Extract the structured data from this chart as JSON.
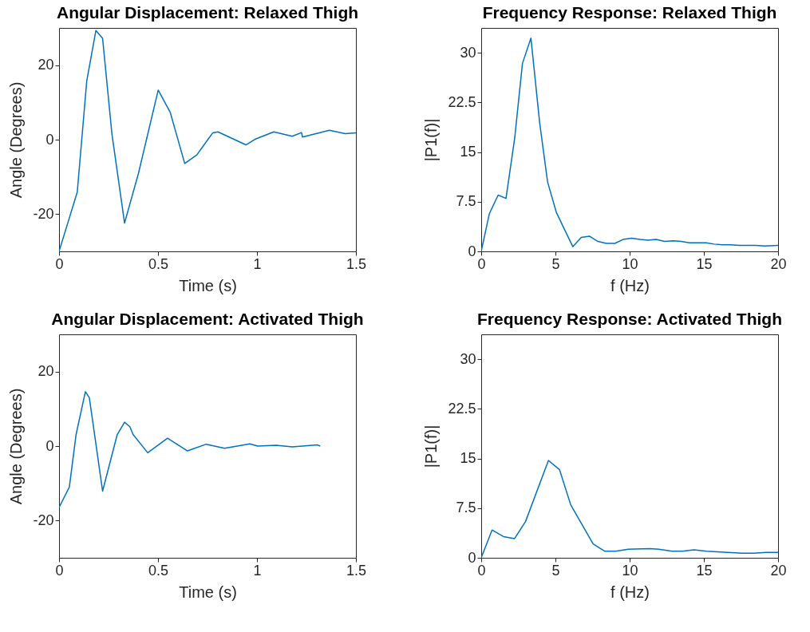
{
  "chart_data": [
    {
      "type": "line",
      "title": "Angular Displacement: Relaxed Thigh",
      "xlabel": "Time (s)",
      "ylabel": "Angle (Degrees)",
      "xlim": [
        0,
        1.5
      ],
      "xticks": [
        0,
        0.5,
        1,
        1.5
      ],
      "ylim": [
        -30,
        30
      ],
      "yticks": [
        -20,
        0,
        20
      ],
      "grid": false,
      "series": [
        {
          "color": "#0072bd",
          "x": [
            0,
            0.092,
            0.14,
            0.186,
            0.22,
            0.267,
            0.331,
            0.401,
            0.501,
            0.562,
            0.635,
            0.696,
            0.776,
            0.803,
            0.944,
            0.99,
            1.085,
            1.178,
            1.225,
            1.23,
            1.366,
            1.446,
            1.5
          ],
          "values": [
            -30,
            -14.1,
            15.8,
            29.3,
            27.2,
            1.6,
            -22.4,
            -9.1,
            13.3,
            7.3,
            -6.4,
            -4.1,
            1.8,
            2.1,
            -1.4,
            0.1,
            2.1,
            0.9,
            1.9,
            0.7,
            2.5,
            1.6,
            1.8
          ]
        }
      ]
    },
    {
      "type": "line",
      "title": "Frequency Response: Relaxed Thigh",
      "xlabel": "f (Hz)",
      "ylabel": "|P1(f)|",
      "xlim": [
        0,
        20
      ],
      "xticks": [
        0,
        5,
        10,
        15,
        20
      ],
      "ylim": [
        0,
        33.75
      ],
      "yticks": [
        0,
        7.5,
        15,
        22.5,
        30
      ],
      "grid": false,
      "series": [
        {
          "color": "#0072bd",
          "x": [
            0,
            0.55,
            1.14,
            1.67,
            2.25,
            2.78,
            3.35,
            3.94,
            4.47,
            5.06,
            6.17,
            6.74,
            7.29,
            7.86,
            8.43,
            9.0,
            9.56,
            10.12,
            10.7,
            11.24,
            11.77,
            12.36,
            12.93,
            13.46,
            14.03,
            15.15,
            15.69,
            16.26,
            16.81,
            17.39,
            18.5,
            19.1,
            20
          ],
          "values": [
            0,
            5.7,
            8.5,
            8.0,
            17.0,
            28.4,
            32.2,
            19.4,
            10.5,
            5.9,
            0.7,
            2.1,
            2.3,
            1.5,
            1.2,
            1.2,
            1.8,
            2.0,
            1.8,
            1.7,
            1.8,
            1.5,
            1.6,
            1.5,
            1.3,
            1.3,
            1.1,
            1.0,
            1.0,
            0.9,
            0.9,
            0.8,
            0.9
          ]
        }
      ]
    },
    {
      "type": "line",
      "title": "Angular Displacement: Activated Thigh",
      "xlabel": "Time (s)",
      "ylabel": "Angle (Degrees)",
      "xlim": [
        0,
        1.5
      ],
      "xticks": [
        0,
        0.5,
        1,
        1.5
      ],
      "ylim": [
        -30,
        30
      ],
      "yticks": [
        -20,
        0,
        20
      ],
      "grid": false,
      "series": [
        {
          "color": "#0072bd",
          "x": [
            0,
            0.052,
            0.086,
            0.133,
            0.153,
            0.22,
            0.294,
            0.331,
            0.358,
            0.374,
            0.448,
            0.548,
            0.649,
            0.743,
            0.836,
            0.964,
            1.004,
            1.097,
            1.178,
            1.306,
            1.32
          ],
          "values": [
            -16.5,
            -11,
            3.1,
            14.6,
            13,
            -12.1,
            3.1,
            6.4,
            5.2,
            3.1,
            -1.8,
            2.1,
            -1.3,
            0.5,
            -0.6,
            0.6,
            0,
            0.2,
            -0.2,
            0.3,
            0
          ]
        }
      ]
    },
    {
      "type": "line",
      "title": "Frequency Response: Activated Thigh",
      "xlabel": "f (Hz)",
      "ylabel": "|P1(f)|",
      "xlim": [
        0,
        20
      ],
      "xticks": [
        0,
        5,
        10,
        15,
        20
      ],
      "ylim": [
        0,
        33.75
      ],
      "yticks": [
        0,
        7.5,
        15,
        22.5,
        30
      ],
      "grid": false,
      "series": [
        {
          "color": "#0072bd",
          "x": [
            0,
            0.73,
            1.5,
            2.25,
            2.99,
            4.53,
            5.28,
            6.03,
            7.54,
            8.31,
            9.06,
            9.91,
            11.34,
            11.96,
            12.85,
            13.56,
            14.33,
            15.17,
            17.57,
            18.37,
            19.17,
            20
          ],
          "values": [
            0,
            4.2,
            3.2,
            2.9,
            5.5,
            14.7,
            13.3,
            8.0,
            2.1,
            1.0,
            1.0,
            1.3,
            1.4,
            1.3,
            1.0,
            1.0,
            1.2,
            1.0,
            0.7,
            0.7,
            0.8,
            0.8
          ]
        }
      ]
    }
  ]
}
